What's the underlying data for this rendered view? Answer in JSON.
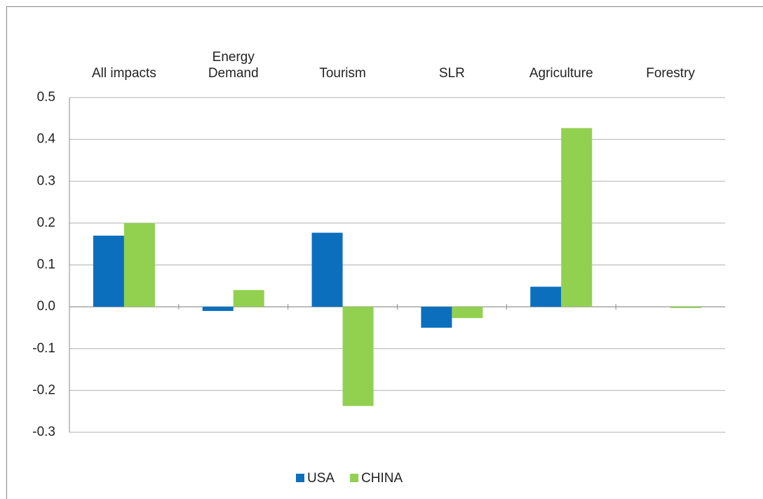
{
  "chart_data": {
    "type": "bar",
    "categories": [
      "All impacts",
      "Energy\nDemand",
      "Tourism",
      "SLR",
      "Agriculture",
      "Forestry"
    ],
    "series": [
      {
        "name": "USA",
        "color": "#0b6fbe",
        "values": [
          0.17,
          -0.01,
          0.177,
          -0.05,
          0.048,
          0
        ]
      },
      {
        "name": "CHINA",
        "color": "#92d050",
        "values": [
          0.2,
          0.04,
          -0.237,
          -0.027,
          0.427,
          -0.003
        ]
      }
    ],
    "ylim": [
      -0.3,
      0.5
    ],
    "yticks": [
      0.5,
      0.4,
      0.3,
      0.2,
      0.1,
      {
        "value": 0,
        "label": "0.0"
      },
      -0.1,
      -0.2,
      -0.3
    ],
    "grid": true,
    "legend": "bottom"
  }
}
